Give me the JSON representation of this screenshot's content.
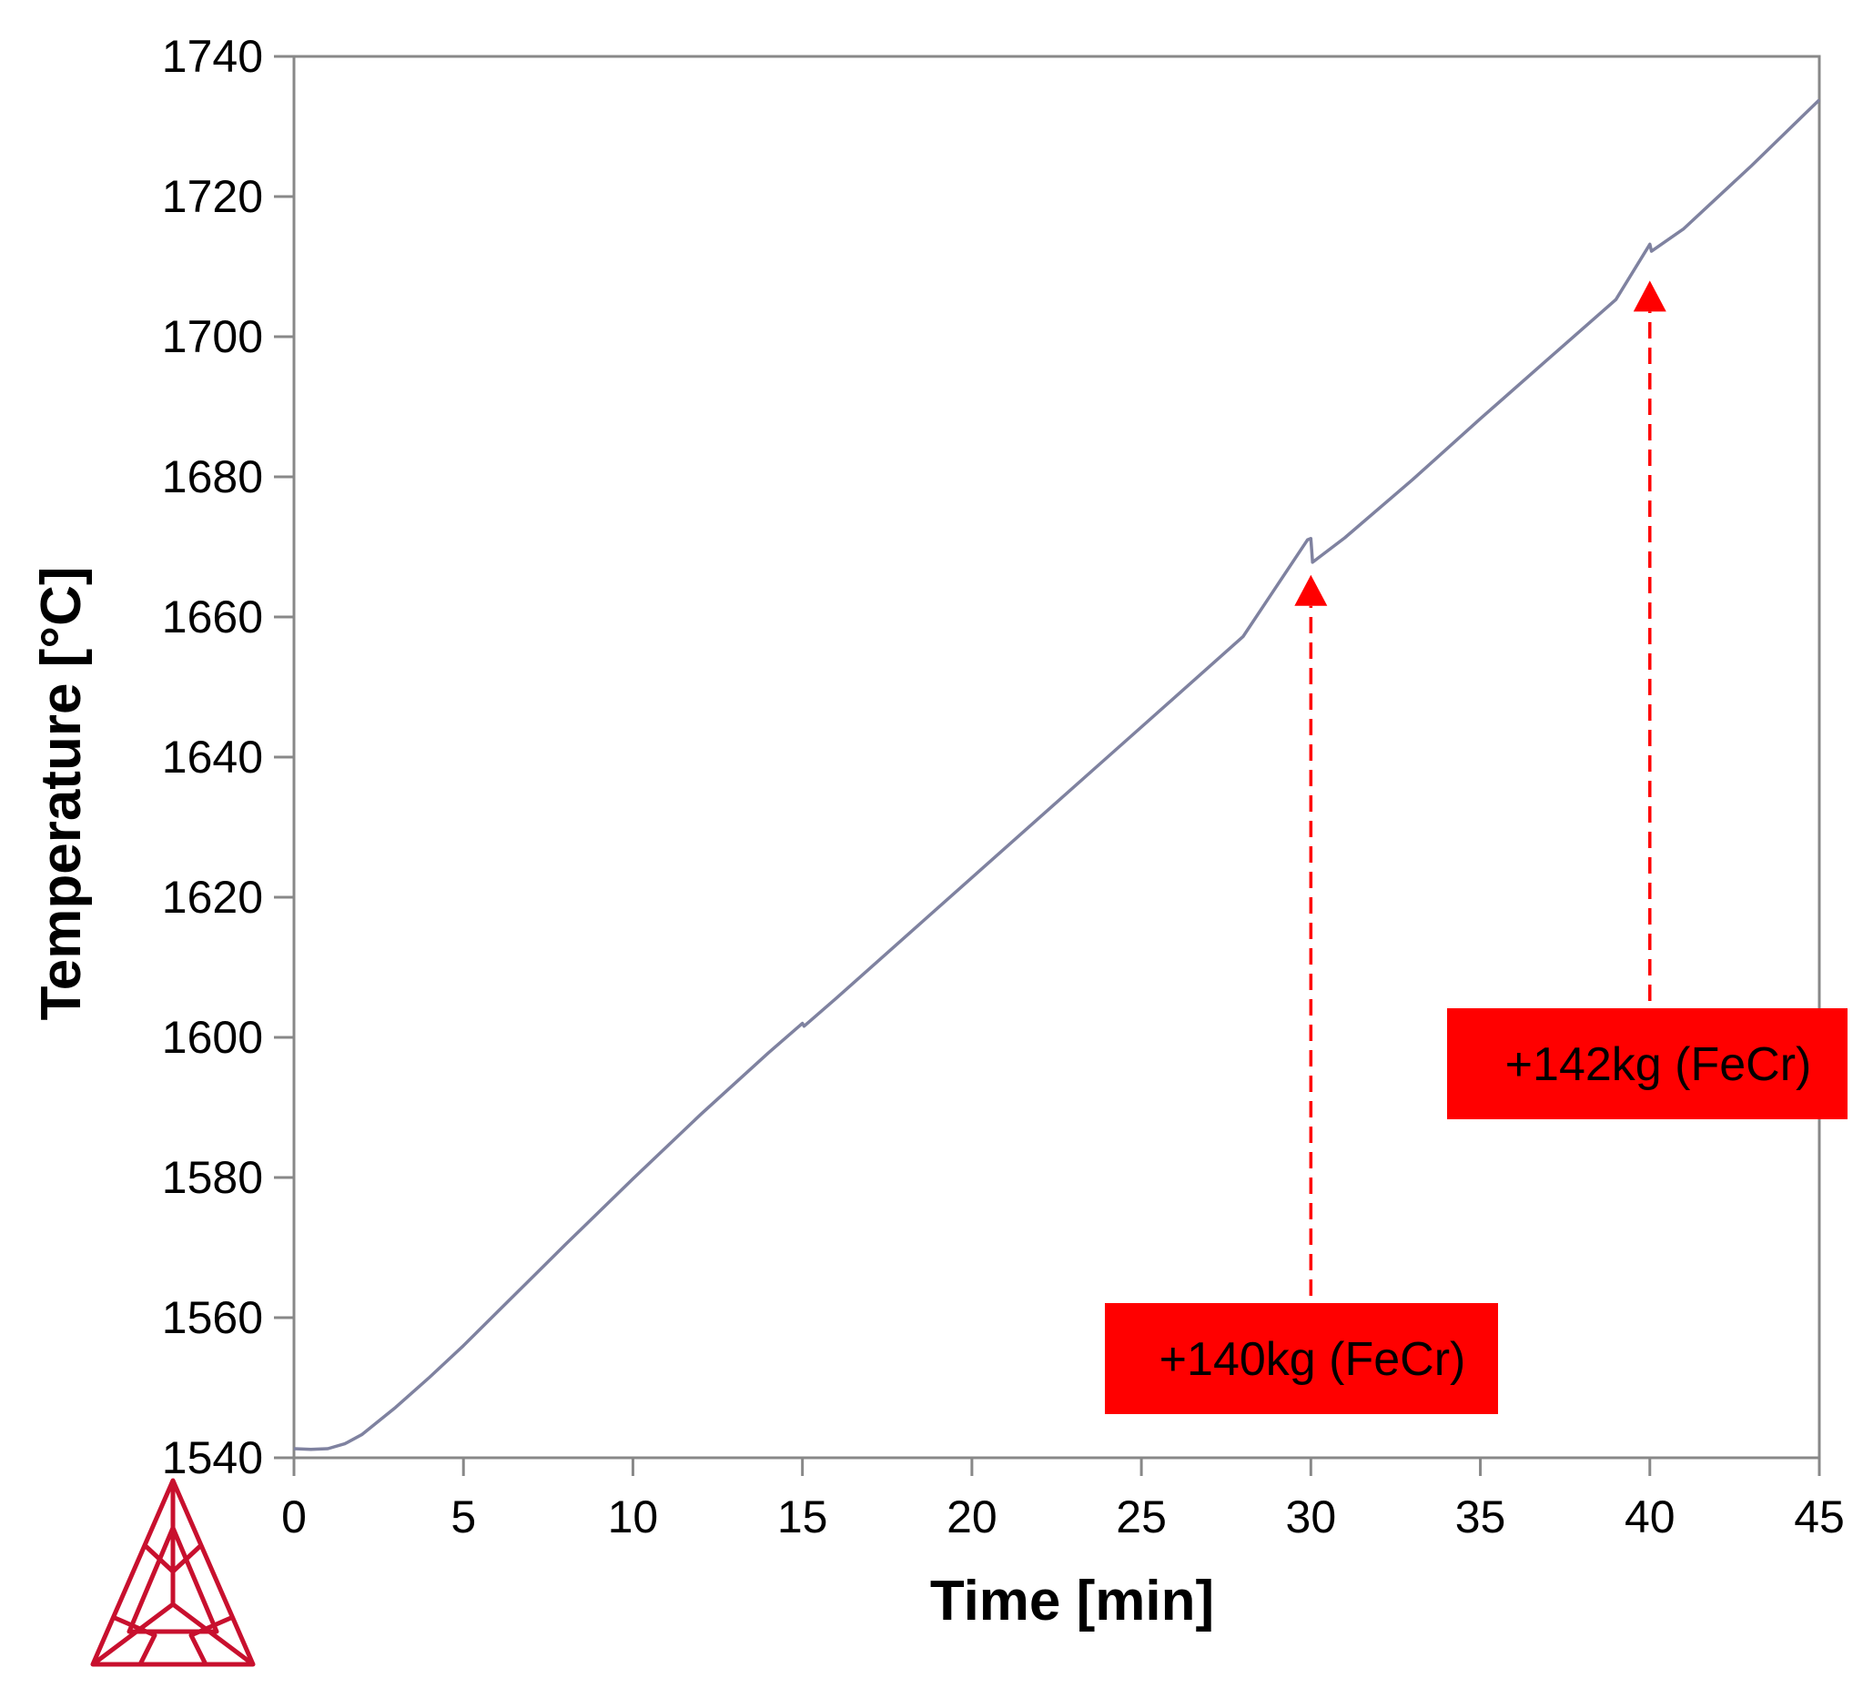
{
  "chart_data": {
    "type": "line",
    "title": "",
    "xlabel": "Time [min]",
    "ylabel": "Temperature [°C]",
    "xlim": [
      0,
      45
    ],
    "ylim": [
      1540,
      1740
    ],
    "xticks": [
      0,
      5,
      10,
      15,
      20,
      25,
      30,
      35,
      40,
      45
    ],
    "yticks": [
      1540,
      1560,
      1580,
      1600,
      1620,
      1640,
      1660,
      1680,
      1700,
      1720,
      1740
    ],
    "grid": false,
    "legend": "none",
    "colors": {
      "line": "#7f82a0",
      "annotation": "#ff0000",
      "axis": "#888888",
      "logo": "#c8102e"
    },
    "series": [
      {
        "name": "Temperature",
        "x": [
          0,
          0.5,
          1,
          1.5,
          2,
          3,
          4,
          5,
          6,
          8,
          10,
          12,
          14,
          15,
          15.05,
          16,
          18,
          20,
          22,
          24,
          26,
          28,
          29.9,
          30,
          30.05,
          31,
          33,
          35,
          37,
          39,
          40,
          40.05,
          41,
          43,
          45
        ],
        "y": [
          1541.3,
          1541.2,
          1541.3,
          1542.0,
          1543.3,
          1547.2,
          1551.5,
          1556.0,
          1560.8,
          1570.4,
          1579.8,
          1589.0,
          1597.8,
          1602.0,
          1601.6,
          1605.6,
          1614.2,
          1622.8,
          1631.4,
          1640.0,
          1648.6,
          1657.2,
          1671.0,
          1671.2,
          1667.8,
          1671.3,
          1679.6,
          1688.3,
          1696.8,
          1705.3,
          1713.2,
          1712.2,
          1715.4,
          1724.4,
          1733.8
        ]
      }
    ],
    "annotations": [
      {
        "text": "+140kg (FeCr)",
        "x": 30,
        "arrow_tip_y": 1666
      },
      {
        "text": "+142kg (FeCr)",
        "x": 40,
        "arrow_tip_y": 1708
      }
    ]
  }
}
